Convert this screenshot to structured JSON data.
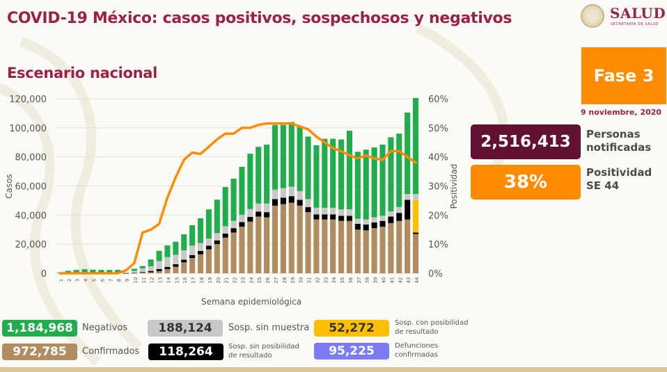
{
  "header": {
    "title": "COVID-19 México: casos positivos, sospechosos y negativos",
    "subtitle": "Escenario nacional",
    "logo_name": "SALUD",
    "logo_sub": "SECRETARÍA DE SALUD",
    "phase": "Fase 3",
    "date": "9 noviembre, 2020"
  },
  "kpis": [
    {
      "value": "2,516,413",
      "label_line1": "Personas",
      "label_line2": "notificadas",
      "color": "#621132"
    },
    {
      "value": "38%",
      "label_line1": "Positividad",
      "label_line2": "SE 44",
      "color": "#ff8c00"
    }
  ],
  "legend": [
    {
      "value": "1,184,968",
      "label": "Negativos",
      "color": "#1fae4b",
      "text_color": "#ffffff"
    },
    {
      "value": "972,785",
      "label": "Confirmados",
      "color": "#b08d60",
      "text_color": "#ffffff"
    },
    {
      "value": "188,124",
      "label": "Sosp. sin muestra",
      "color": "#c8c8c8",
      "text_color": "#333333"
    },
    {
      "value": "118,264",
      "label": "Sosp. sin posibilidad de resultado",
      "label_line1": "Sosp. sin posibilidad",
      "label_line2": "de resultado",
      "color": "#000000",
      "text_color": "#ffffff"
    },
    {
      "value": "52,272",
      "label": "Sosp. con posibilidad de resultado",
      "label_line1": "Sosp. con posibilidad",
      "label_line2": "de resultado",
      "color": "#ffbf00",
      "text_color": "#333333"
    },
    {
      "value": "95,225",
      "label": "Defunciones confirmadas",
      "label_line1": "Defunciones",
      "label_line2": "confirmadas",
      "color": "#7b7cf5",
      "text_color": "#ffffff"
    }
  ],
  "chart_data": {
    "type": "bar",
    "stacked": true,
    "title": "Escenario nacional",
    "xlabel": "Semana epidemiológica",
    "ylabel": "Casos",
    "y2label": "Positividad",
    "ylim": [
      0,
      120000
    ],
    "y2lim": [
      0,
      60
    ],
    "yticks": [
      "0",
      "20,000",
      "40,000",
      "60,000",
      "80,000",
      "100,000",
      "120,000"
    ],
    "y2ticks": [
      "0%",
      "10%",
      "20%",
      "30%",
      "40%",
      "50%",
      "60%"
    ],
    "grid": true,
    "categories": [
      "1",
      "2",
      "3",
      "4",
      "5",
      "6",
      "7",
      "8",
      "9",
      "10",
      "11",
      "12",
      "13",
      "14",
      "15",
      "16",
      "17",
      "18",
      "19",
      "20",
      "21",
      "22",
      "23",
      "24",
      "25",
      "26",
      "27",
      "28",
      "29",
      "30",
      "31",
      "32",
      "33",
      "34",
      "35",
      "36",
      "37",
      "38",
      "39",
      "40",
      "41",
      "42",
      "43",
      "44"
    ],
    "series": [
      {
        "name": "Confirmados",
        "color": "#b08d60",
        "values": [
          0,
          0,
          0,
          0,
          0,
          0,
          0,
          0,
          10,
          60,
          300,
          700,
          1500,
          2800,
          4500,
          7500,
          10500,
          13000,
          16500,
          20000,
          24500,
          28000,
          32000,
          35500,
          39000,
          38500,
          46500,
          47500,
          48500,
          46500,
          42000,
          37000,
          37000,
          37000,
          36000,
          36000,
          30000,
          29500,
          31000,
          32000,
          34500,
          36000,
          37000,
          27000
        ]
      },
      {
        "name": "Sosp. sin posibilidad de resultado",
        "color": "#000000",
        "values": [
          0,
          0,
          0,
          0,
          0,
          0,
          0,
          0,
          5,
          150,
          500,
          900,
          1400,
          1600,
          1700,
          1800,
          2000,
          2300,
          2400,
          2600,
          2800,
          3000,
          3200,
          3200,
          3400,
          3500,
          4500,
          4500,
          4500,
          4000,
          3500,
          3500,
          3500,
          3500,
          3500,
          3500,
          4000,
          4000,
          4000,
          4000,
          4500,
          5500,
          13500,
          1000
        ]
      },
      {
        "name": "Sosp. con posibilidad de resultado",
        "color": "#ffbf00",
        "values": [
          0,
          0,
          0,
          0,
          0,
          0,
          0,
          0,
          0,
          0,
          0,
          0,
          0,
          0,
          0,
          0,
          0,
          0,
          0,
          0,
          0,
          0,
          0,
          0,
          0,
          0,
          0,
          0,
          0,
          0,
          0,
          0,
          0,
          0,
          0,
          0,
          0,
          0,
          0,
          0,
          0,
          0,
          0,
          22500
        ]
      },
      {
        "name": "Sosp. sin muestra",
        "color": "#c8c8c8",
        "values": [
          200,
          300,
          300,
          300,
          300,
          300,
          300,
          300,
          300,
          1500,
          2500,
          3200,
          5500,
          6700,
          6500,
          6500,
          6500,
          5500,
          5000,
          5000,
          5000,
          5000,
          5000,
          5500,
          5500,
          6000,
          6500,
          6500,
          6500,
          6000,
          5500,
          4500,
          4500,
          4500,
          4500,
          4500,
          3500,
          3500,
          3500,
          3500,
          3500,
          4000,
          4000,
          4000
        ]
      },
      {
        "name": "Negativos",
        "color": "#1fae4b",
        "values": [
          200,
          1400,
          2000,
          2500,
          2200,
          2000,
          2000,
          2000,
          200,
          1400,
          1700,
          4700,
          7000,
          8000,
          9000,
          11000,
          14000,
          17000,
          20000,
          23000,
          27000,
          29000,
          33000,
          38000,
          39000,
          40500,
          44500,
          43500,
          44500,
          44500,
          43000,
          43000,
          47500,
          47500,
          48000,
          54000,
          46000,
          48000,
          48000,
          49000,
          51000,
          50500,
          56000,
          66000
        ]
      }
    ],
    "line_series": {
      "name": "Positividad",
      "axis": "right",
      "color": "#ff8c00",
      "unit": "%",
      "values": [
        0,
        0,
        0,
        0,
        0,
        0,
        0,
        0,
        1,
        3.5,
        14,
        15,
        17,
        26,
        33,
        39,
        41.5,
        41,
        43.5,
        46,
        48,
        48,
        50,
        50,
        51,
        51.5,
        51.5,
        51.5,
        51.5,
        50.5,
        49.5,
        47,
        45,
        43,
        42,
        40.5,
        39.5,
        40.5,
        39.5,
        39,
        42,
        42,
        40,
        38
      ]
    }
  }
}
